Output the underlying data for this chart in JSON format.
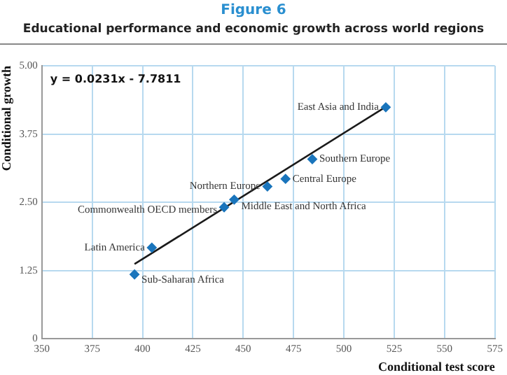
{
  "chart_data": {
    "type": "scatter",
    "title": "Figure 6",
    "subtitle": "Educational performance and economic growth across world regions",
    "xlabel": "Conditional test score",
    "ylabel": "Conditional growth",
    "series": [
      {
        "color": "#1a75bc",
        "marker": "diamond",
        "x": [
          396,
          404.6,
          440.5,
          445.5,
          462,
          471,
          484.3,
          520.8
        ],
        "values": [
          1.18,
          1.67,
          2.41,
          2.55,
          2.79,
          2.93,
          3.29,
          4.24
        ]
      },
      {
        "type": "line",
        "color": "#1a1a1a",
        "marker": "none",
        "x": [
          396,
          520
        ],
        "values": [
          1.37,
          4.23
        ]
      }
    ],
    "annotations": [
      "y = 0.0231x - 7.7811",
      {
        "text": "Sub-Saharan Africa",
        "x": 396,
        "y": 1.18
      },
      {
        "text": "Latin America",
        "x": 404.6,
        "y": 1.67
      },
      {
        "text": "Commonwealth OECD members",
        "x": 440.5,
        "y": 2.41
      },
      {
        "text": "Middle East and North Africa",
        "x": 445.5,
        "y": 2.55
      },
      {
        "text": "Northern Europe",
        "x": 462,
        "y": 2.79
      },
      {
        "text": "Central Europe",
        "x": 471,
        "y": 2.93
      },
      {
        "text": "Southern Europe",
        "x": 484.3,
        "y": 3.29
      },
      {
        "text": "East Asia and India",
        "x": 520.8,
        "y": 4.24
      }
    ],
    "xlim": [
      350,
      575
    ],
    "xticks": [
      350,
      375,
      400,
      425,
      450,
      475,
      500,
      525,
      550,
      575
    ],
    "ylim": [
      0,
      5
    ],
    "yticks": [
      {
        "value": 0,
        "label": "0"
      },
      {
        "value": 1.25,
        "label": "1.25"
      },
      {
        "value": 2.5,
        "label": "2.50"
      },
      {
        "value": 3.75,
        "label": "3.75"
      },
      {
        "value": 5,
        "label": "5.00"
      }
    ],
    "grid": true,
    "legend": false,
    "line_style": "solid"
  }
}
